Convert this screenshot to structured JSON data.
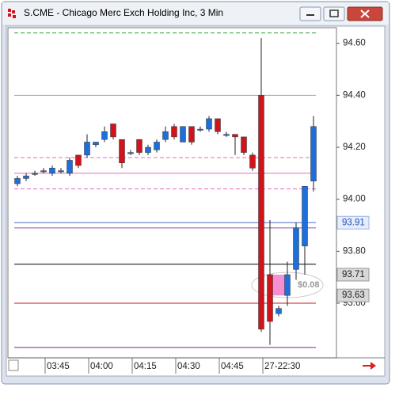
{
  "chart_data": {
    "type": "candlestick",
    "title": "S.CME - Chicago Merc Exch Holding Inc, 3 Min",
    "categories": [
      null,
      null,
      null,
      "03:45",
      null,
      null,
      null,
      null,
      "04:00",
      null,
      null,
      null,
      null,
      "04:15",
      null,
      null,
      null,
      null,
      "04:30",
      null,
      null,
      null,
      null,
      "04:45",
      null,
      null,
      null,
      null,
      "27-22:30",
      null,
      null,
      null,
      null,
      null,
      null
    ],
    "open": [
      94.06,
      94.08,
      94.1,
      94.11,
      94.1,
      94.11,
      94.1,
      94.17,
      94.17,
      94.21,
      94.23,
      94.29,
      94.23,
      94.18,
      94.23,
      94.18,
      94.19,
      94.23,
      94.28,
      94.22,
      94.28,
      94.27,
      94.27,
      94.31,
      94.25,
      94.25,
      94.24,
      94.17,
      94.4,
      93.71,
      93.56,
      93.63,
      93.73,
      93.82,
      94.07
    ],
    "high": [
      94.09,
      94.1,
      94.11,
      94.12,
      94.13,
      94.12,
      94.16,
      94.17,
      94.25,
      94.22,
      94.28,
      94.29,
      94.23,
      94.19,
      94.23,
      94.21,
      94.23,
      94.28,
      94.29,
      94.28,
      94.28,
      94.28,
      94.32,
      94.31,
      94.26,
      94.25,
      94.24,
      94.18,
      94.62,
      93.92,
      93.59,
      93.76,
      93.91,
      94.05,
      94.32
    ],
    "low": [
      94.05,
      94.07,
      94.09,
      94.1,
      94.09,
      94.1,
      94.09,
      94.12,
      94.16,
      94.2,
      94.22,
      94.23,
      94.12,
      94.17,
      94.17,
      94.17,
      94.18,
      94.22,
      94.23,
      94.22,
      94.21,
      94.26,
      94.26,
      94.25,
      94.24,
      94.17,
      94.17,
      94.11,
      93.49,
      93.44,
      93.55,
      93.59,
      93.69,
      93.71,
      94.03
    ],
    "close": [
      94.08,
      94.09,
      94.1,
      94.11,
      94.12,
      94.11,
      94.15,
      94.13,
      94.22,
      94.22,
      94.26,
      94.24,
      94.14,
      94.18,
      94.18,
      94.2,
      94.22,
      94.26,
      94.24,
      94.28,
      94.22,
      94.27,
      94.31,
      94.26,
      94.25,
      94.24,
      94.18,
      94.12,
      93.5,
      93.53,
      93.58,
      93.71,
      93.89,
      94.05,
      94.28
    ],
    "up_color": "#1e6fd9",
    "down_color": "#d0141c",
    "ylim": [
      93.39,
      94.66
    ],
    "yticks": [
      {
        "value": 93.6,
        "label": "93.60"
      },
      {
        "value": 93.8,
        "label": "93.80"
      },
      {
        "value": 94.0,
        "label": "94.00"
      },
      {
        "value": 94.2,
        "label": "94.20"
      },
      {
        "value": 94.4,
        "label": "94.40"
      },
      {
        "value": 94.6,
        "label": "94.60"
      }
    ],
    "levels": [
      {
        "value": 94.64,
        "color": "#2a9d2a",
        "dashed": true
      },
      {
        "value": 94.4,
        "color": "#a0a0a0",
        "dashed": false
      },
      {
        "value": 94.16,
        "color": "#e36fb7",
        "dashed": true
      },
      {
        "value": 94.1,
        "color": "#e36fb7",
        "dashed": false
      },
      {
        "value": 94.04,
        "color": "#e36fb7",
        "dashed": true
      },
      {
        "value": 93.91,
        "color": "#4a6fd0",
        "dashed": false
      },
      {
        "value": 93.89,
        "color": "#9b4fb0",
        "dashed": false
      },
      {
        "value": 93.75,
        "color": "#000000",
        "dashed": false
      },
      {
        "value": 93.6,
        "color": "#d0141c",
        "dashed": false
      },
      {
        "value": 93.43,
        "color": "#8a1a8a",
        "dashed": false
      }
    ],
    "price_labels": [
      {
        "value": 93.91,
        "label": "93.91",
        "color": "#1f4fc0"
      },
      {
        "value": 93.71,
        "label": "93.71",
        "color": "#222222"
      },
      {
        "value": 93.63,
        "label": "93.63",
        "color": "#222222"
      }
    ],
    "measure": {
      "from": 93.63,
      "to": 93.71,
      "label": "$0.08"
    }
  }
}
